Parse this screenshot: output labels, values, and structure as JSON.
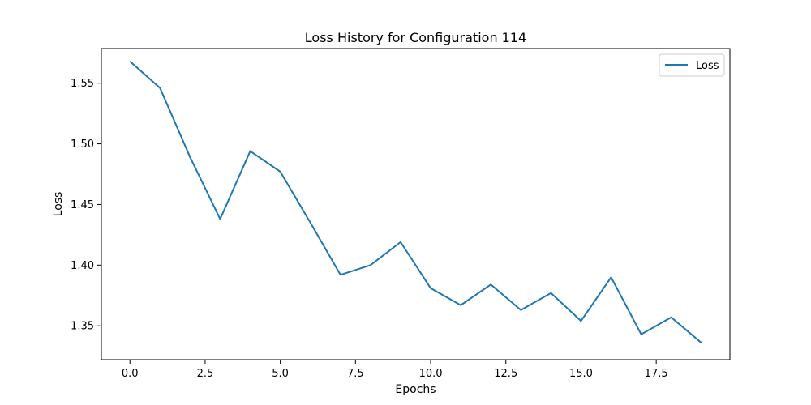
{
  "chart_data": {
    "type": "line",
    "title": "Loss History for Configuration 114",
    "xlabel": "Epochs",
    "ylabel": "Loss",
    "xlim": [
      -0.95,
      19.95
    ],
    "ylim": [
      1.3221,
      1.5785
    ],
    "x_ticks": [
      0.0,
      2.5,
      5.0,
      7.5,
      10.0,
      12.5,
      15.0,
      17.5
    ],
    "x_tick_labels": [
      "0.0",
      "2.5",
      "5.0",
      "7.5",
      "10.0",
      "12.5",
      "15.0",
      "17.5"
    ],
    "y_ticks": [
      1.35,
      1.4,
      1.45,
      1.5,
      1.55
    ],
    "y_tick_labels": [
      "1.35",
      "1.40",
      "1.45",
      "1.50",
      "1.55"
    ],
    "grid": false,
    "legend_position": "top-right",
    "series": [
      {
        "name": "Loss",
        "color": "#1f77b4",
        "x": [
          0,
          1,
          2,
          3,
          4,
          5,
          6,
          7,
          8,
          9,
          10,
          11,
          12,
          13,
          14,
          15,
          16,
          17,
          18,
          19
        ],
        "values": [
          1.568,
          1.546,
          1.489,
          1.438,
          1.494,
          1.477,
          1.435,
          1.392,
          1.4,
          1.419,
          1.381,
          1.367,
          1.384,
          1.363,
          1.377,
          1.354,
          1.39,
          1.343,
          1.357,
          1.336
        ]
      }
    ]
  }
}
